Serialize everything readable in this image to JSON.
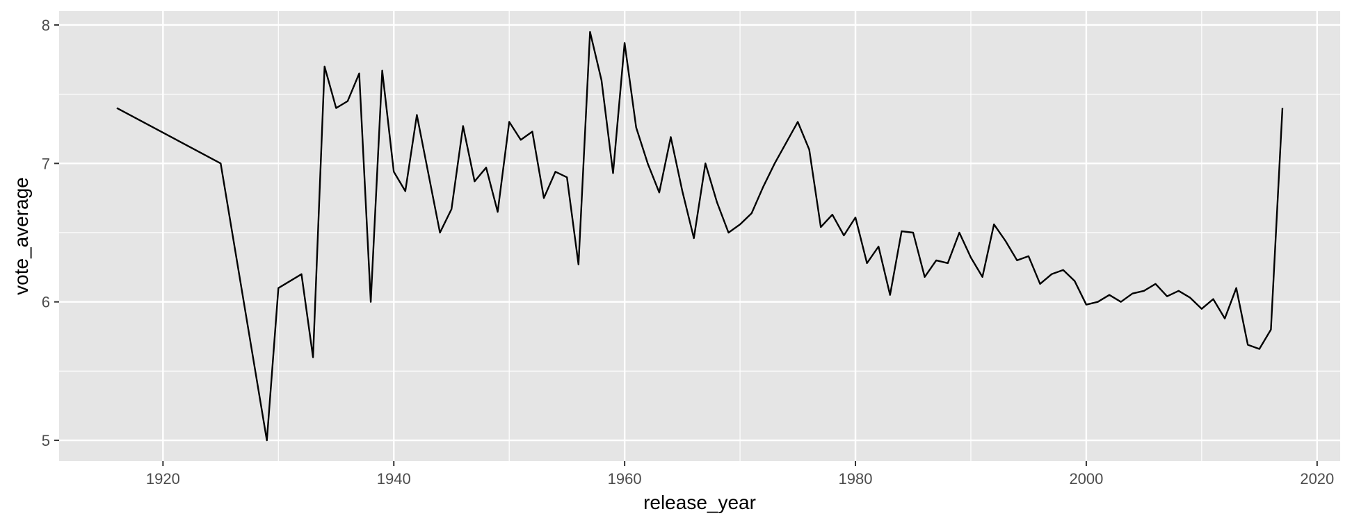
{
  "chart_data": {
    "type": "line",
    "title": "",
    "xlabel": "release_year",
    "ylabel": "vote_average",
    "xlim": [
      1911,
      2022
    ],
    "ylim": [
      4.85,
      8.1
    ],
    "x_ticks": [
      1920,
      1940,
      1960,
      1980,
      2000,
      2020
    ],
    "y_ticks": [
      5,
      6,
      7,
      8
    ],
    "grid": true,
    "colors": {
      "panel": "#e5e5e5",
      "grid": "#ffffff",
      "line": "#000000",
      "tick_text": "#4d4d4d",
      "tick_mark": "#333333"
    },
    "series": [
      {
        "x": [
          1916,
          1925,
          1929,
          1930,
          1932,
          1933,
          1934,
          1935,
          1936,
          1937,
          1938,
          1939,
          1940,
          1941,
          1942,
          1944,
          1945,
          1946,
          1947,
          1948,
          1949,
          1950,
          1951,
          1952,
          1953,
          1954,
          1955,
          1956,
          1957,
          1958,
          1959,
          1960,
          1961,
          1962,
          1963,
          1964,
          1965,
          1966,
          1967,
          1968,
          1969,
          1970,
          1971,
          1972,
          1973,
          1974,
          1975,
          1976,
          1977,
          1978,
          1979,
          1980,
          1981,
          1982,
          1983,
          1984,
          1985,
          1986,
          1987,
          1988,
          1989,
          1990,
          1991,
          1992,
          1993,
          1994,
          1995,
          1996,
          1997,
          1998,
          1999,
          2000,
          2001,
          2002,
          2003,
          2004,
          2005,
          2006,
          2007,
          2008,
          2009,
          2010,
          2011,
          2012,
          2013,
          2014,
          2015,
          2016,
          2017
        ],
        "y": [
          7.4,
          7.0,
          5.0,
          6.1,
          6.2,
          5.6,
          7.7,
          7.4,
          7.45,
          7.65,
          6.0,
          7.67,
          6.94,
          6.8,
          7.35,
          6.5,
          6.67,
          7.27,
          6.87,
          6.97,
          6.65,
          7.3,
          7.17,
          7.23,
          6.75,
          6.94,
          6.9,
          6.27,
          7.95,
          7.6,
          6.93,
          7.87,
          7.26,
          7.0,
          6.79,
          7.19,
          6.8,
          6.46,
          7.0,
          6.72,
          6.5,
          6.56,
          6.64,
          6.83,
          7.0,
          7.15,
          7.3,
          7.1,
          6.54,
          6.63,
          6.48,
          6.61,
          6.28,
          6.4,
          6.05,
          6.51,
          6.5,
          6.18,
          6.3,
          6.28,
          6.5,
          6.32,
          6.18,
          6.56,
          6.44,
          6.3,
          6.33,
          6.13,
          6.2,
          6.23,
          6.15,
          5.98,
          6.0,
          6.05,
          6.0,
          6.06,
          6.08,
          6.13,
          6.04,
          6.08,
          6.03,
          5.95,
          6.02,
          5.88,
          6.1,
          5.69,
          5.66,
          5.8,
          7.4
        ]
      }
    ]
  }
}
